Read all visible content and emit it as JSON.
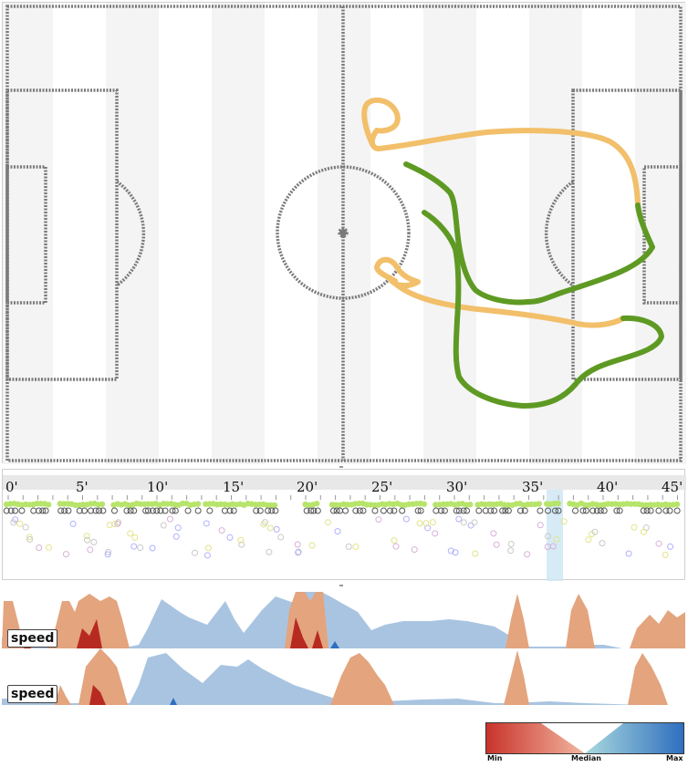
{
  "timeline": {
    "ticks": [
      "0'",
      "5'",
      "10'",
      "15'",
      "20'",
      "25'",
      "30'",
      "35'",
      "40'",
      "45'"
    ]
  },
  "speed_panels": [
    {
      "label": "speed"
    },
    {
      "label": "speed"
    }
  ],
  "legend": {
    "min_label": "Min",
    "median_label": "Median",
    "max_label": "Max",
    "colors": {
      "min": "#c8342c",
      "low": "#f2b6a0",
      "median": "#ffffff",
      "high": "#a9d9de",
      "max": "#2f6fbf"
    }
  },
  "colors": {
    "track_orange": "#f2bf6a",
    "track_green": "#5e9a23",
    "speed_above": "#e3a47e",
    "speed_below": "#a9c4e1",
    "speed_min": "#b72a22",
    "speed_max": "#2f6fbf",
    "timeline_highlight": "#cfe8f5",
    "event_green": "#b7e46a"
  }
}
